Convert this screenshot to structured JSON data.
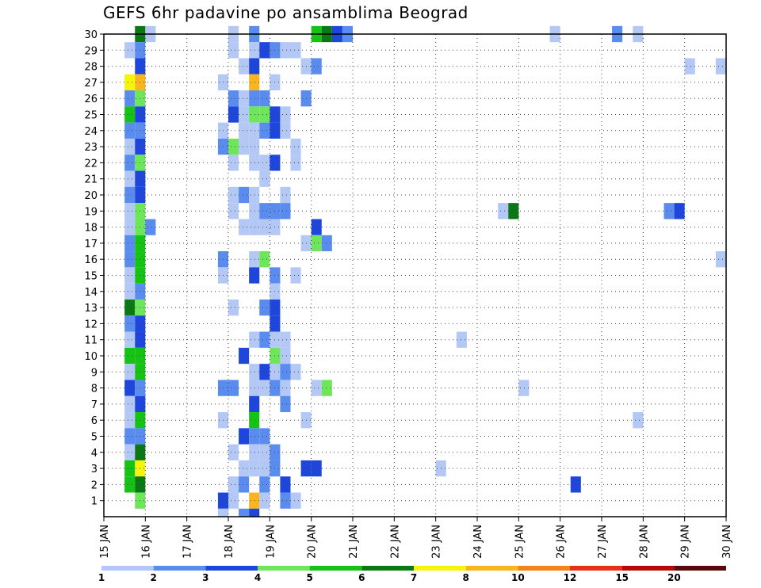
{
  "chart_data": {
    "type": "heatmap",
    "title": "GEFS 6hr padavine po ansamblima Beograd",
    "x_tick_labels": [
      "15 JAN",
      "16 JAN",
      "17 JAN",
      "18 JAN",
      "19 JAN",
      "20 JAN",
      "21 JAN",
      "22 JAN",
      "23 JAN",
      "24 JAN",
      "25 JAN",
      "26 JAN",
      "27 JAN",
      "28 JAN",
      "29 JAN",
      "30 JAN"
    ],
    "x_range_days": [
      15,
      30
    ],
    "y_tick_labels": [
      "1",
      "2",
      "3",
      "4",
      "5",
      "6",
      "7",
      "8",
      "9",
      "10",
      "11",
      "12",
      "13",
      "14",
      "15",
      "16",
      "17",
      "18",
      "19",
      "20",
      "21",
      "22",
      "23",
      "24",
      "25",
      "26",
      "27",
      "28",
      "29",
      "30"
    ],
    "y_range": [
      0,
      30
    ],
    "grid": "dotted",
    "colorbar": {
      "levels": [
        "1",
        "2",
        "3",
        "4",
        "5",
        "6",
        "7",
        "8",
        "10",
        "12",
        "15",
        "20"
      ],
      "colors": [
        "#b4c8f5",
        "#5a8cf0",
        "#1e46dc",
        "#6ee65a",
        "#14c314",
        "#0a7814",
        "#f5f50a",
        "#fab41e",
        "#f58214",
        "#e63214",
        "#b40a0a",
        "#5a0a0a"
      ]
    },
    "cells": [
      {
        "member": 30,
        "day": 15.75,
        "level": 6
      },
      {
        "member": 30,
        "day": 16.0,
        "level": 1
      },
      {
        "member": 30,
        "day": 18.0,
        "level": 1
      },
      {
        "member": 30,
        "day": 18.5,
        "level": 2
      },
      {
        "member": 30,
        "day": 20.0,
        "level": 5
      },
      {
        "member": 30,
        "day": 20.25,
        "level": 6
      },
      {
        "member": 30,
        "day": 20.5,
        "level": 3
      },
      {
        "member": 30,
        "day": 20.75,
        "level": 2
      },
      {
        "member": 30,
        "day": 25.75,
        "level": 1
      },
      {
        "member": 30,
        "day": 27.25,
        "level": 2
      },
      {
        "member": 30,
        "day": 27.75,
        "level": 1
      },
      {
        "member": 29,
        "day": 15.5,
        "level": 1
      },
      {
        "member": 29,
        "day": 15.75,
        "level": 2
      },
      {
        "member": 29,
        "day": 18.0,
        "level": 1
      },
      {
        "member": 29,
        "day": 18.5,
        "level": 1
      },
      {
        "member": 29,
        "day": 18.75,
        "level": 3
      },
      {
        "member": 29,
        "day": 19.0,
        "level": 2
      },
      {
        "member": 29,
        "day": 19.25,
        "level": 1
      },
      {
        "member": 29,
        "day": 19.5,
        "level": 1
      },
      {
        "member": 28,
        "day": 15.75,
        "level": 3
      },
      {
        "member": 28,
        "day": 18.25,
        "level": 1
      },
      {
        "member": 28,
        "day": 18.5,
        "level": 3
      },
      {
        "member": 28,
        "day": 19.75,
        "level": 1
      },
      {
        "member": 28,
        "day": 20.0,
        "level": 2
      },
      {
        "member": 28,
        "day": 29.0,
        "level": 1
      },
      {
        "member": 28,
        "day": 29.75,
        "level": 1
      },
      {
        "member": 27,
        "day": 15.5,
        "level": 7
      },
      {
        "member": 27,
        "day": 15.75,
        "level": 8
      },
      {
        "member": 27,
        "day": 17.75,
        "level": 1
      },
      {
        "member": 27,
        "day": 18.5,
        "level": 8
      },
      {
        "member": 27,
        "day": 19.0,
        "level": 1
      },
      {
        "member": 26,
        "day": 15.5,
        "level": 2
      },
      {
        "member": 26,
        "day": 15.75,
        "level": 4
      },
      {
        "member": 26,
        "day": 18.0,
        "level": 2
      },
      {
        "member": 26,
        "day": 18.25,
        "level": 1
      },
      {
        "member": 26,
        "day": 18.5,
        "level": 2
      },
      {
        "member": 26,
        "day": 18.75,
        "level": 2
      },
      {
        "member": 26,
        "day": 19.75,
        "level": 2
      },
      {
        "member": 25,
        "day": 15.5,
        "level": 5
      },
      {
        "member": 25,
        "day": 15.75,
        "level": 3
      },
      {
        "member": 25,
        "day": 18.0,
        "level": 3
      },
      {
        "member": 25,
        "day": 18.25,
        "level": 1
      },
      {
        "member": 25,
        "day": 18.5,
        "level": 4
      },
      {
        "member": 25,
        "day": 18.75,
        "level": 4
      },
      {
        "member": 25,
        "day": 19.0,
        "level": 3
      },
      {
        "member": 25,
        "day": 19.25,
        "level": 1
      },
      {
        "member": 24,
        "day": 15.5,
        "level": 2
      },
      {
        "member": 24,
        "day": 15.75,
        "level": 2
      },
      {
        "member": 24,
        "day": 17.75,
        "level": 1
      },
      {
        "member": 24,
        "day": 18.25,
        "level": 1
      },
      {
        "member": 24,
        "day": 18.5,
        "level": 1
      },
      {
        "member": 24,
        "day": 18.75,
        "level": 2
      },
      {
        "member": 24,
        "day": 19.0,
        "level": 3
      },
      {
        "member": 24,
        "day": 19.25,
        "level": 1
      },
      {
        "member": 23,
        "day": 15.5,
        "level": 1
      },
      {
        "member": 23,
        "day": 15.75,
        "level": 3
      },
      {
        "member": 23,
        "day": 17.75,
        "level": 2
      },
      {
        "member": 23,
        "day": 18.0,
        "level": 4
      },
      {
        "member": 23,
        "day": 18.25,
        "level": 1
      },
      {
        "member": 23,
        "day": 18.5,
        "level": 1
      },
      {
        "member": 23,
        "day": 19.5,
        "level": 1
      },
      {
        "member": 22,
        "day": 15.5,
        "level": 2
      },
      {
        "member": 22,
        "day": 15.75,
        "level": 4
      },
      {
        "member": 22,
        "day": 18.0,
        "level": 1
      },
      {
        "member": 22,
        "day": 18.5,
        "level": 1
      },
      {
        "member": 22,
        "day": 18.75,
        "level": 1
      },
      {
        "member": 22,
        "day": 19.0,
        "level": 3
      },
      {
        "member": 22,
        "day": 19.5,
        "level": 1
      },
      {
        "member": 21,
        "day": 15.5,
        "level": 1
      },
      {
        "member": 21,
        "day": 15.75,
        "level": 3
      },
      {
        "member": 21,
        "day": 18.75,
        "level": 1
      },
      {
        "member": 20,
        "day": 15.5,
        "level": 2
      },
      {
        "member": 20,
        "day": 15.75,
        "level": 3
      },
      {
        "member": 20,
        "day": 18.0,
        "level": 1
      },
      {
        "member": 20,
        "day": 18.25,
        "level": 2
      },
      {
        "member": 20,
        "day": 18.5,
        "level": 1
      },
      {
        "member": 20,
        "day": 19.25,
        "level": 1
      },
      {
        "member": 19,
        "day": 15.5,
        "level": 1
      },
      {
        "member": 19,
        "day": 15.75,
        "level": 4
      },
      {
        "member": 19,
        "day": 18.0,
        "level": 1
      },
      {
        "member": 19,
        "day": 18.5,
        "level": 1
      },
      {
        "member": 19,
        "day": 18.75,
        "level": 2
      },
      {
        "member": 19,
        "day": 19.0,
        "level": 2
      },
      {
        "member": 19,
        "day": 19.25,
        "level": 2
      },
      {
        "member": 19,
        "day": 24.5,
        "level": 1
      },
      {
        "member": 19,
        "day": 24.75,
        "level": 6
      },
      {
        "member": 19,
        "day": 28.5,
        "level": 2
      },
      {
        "member": 19,
        "day": 28.75,
        "level": 3
      },
      {
        "member": 18,
        "day": 15.5,
        "level": 1
      },
      {
        "member": 18,
        "day": 15.75,
        "level": 4
      },
      {
        "member": 18,
        "day": 16.0,
        "level": 2
      },
      {
        "member": 18,
        "day": 18.25,
        "level": 1
      },
      {
        "member": 18,
        "day": 18.5,
        "level": 1
      },
      {
        "member": 18,
        "day": 18.75,
        "level": 1
      },
      {
        "member": 18,
        "day": 19.0,
        "level": 1
      },
      {
        "member": 18,
        "day": 20.0,
        "level": 3
      },
      {
        "member": 17,
        "day": 15.5,
        "level": 2
      },
      {
        "member": 17,
        "day": 15.75,
        "level": 5
      },
      {
        "member": 17,
        "day": 19.75,
        "level": 1
      },
      {
        "member": 17,
        "day": 20.0,
        "level": 4
      },
      {
        "member": 17,
        "day": 20.25,
        "level": 2
      },
      {
        "member": 16,
        "day": 15.5,
        "level": 2
      },
      {
        "member": 16,
        "day": 15.75,
        "level": 5
      },
      {
        "member": 16,
        "day": 17.75,
        "level": 2
      },
      {
        "member": 16,
        "day": 18.5,
        "level": 1
      },
      {
        "member": 16,
        "day": 18.75,
        "level": 4
      },
      {
        "member": 16,
        "day": 29.75,
        "level": 1
      },
      {
        "member": 15,
        "day": 15.5,
        "level": 1
      },
      {
        "member": 15,
        "day": 15.75,
        "level": 5
      },
      {
        "member": 15,
        "day": 17.75,
        "level": 1
      },
      {
        "member": 15,
        "day": 18.5,
        "level": 3
      },
      {
        "member": 15,
        "day": 19.0,
        "level": 2
      },
      {
        "member": 15,
        "day": 19.5,
        "level": 1
      },
      {
        "member": 14,
        "day": 15.5,
        "level": 1
      },
      {
        "member": 14,
        "day": 15.75,
        "level": 2
      },
      {
        "member": 14,
        "day": 19.0,
        "level": 1
      },
      {
        "member": 13,
        "day": 15.5,
        "level": 6
      },
      {
        "member": 13,
        "day": 15.75,
        "level": 4
      },
      {
        "member": 13,
        "day": 18.0,
        "level": 1
      },
      {
        "member": 13,
        "day": 18.75,
        "level": 2
      },
      {
        "member": 13,
        "day": 19.0,
        "level": 3
      },
      {
        "member": 12,
        "day": 15.5,
        "level": 2
      },
      {
        "member": 12,
        "day": 15.75,
        "level": 3
      },
      {
        "member": 12,
        "day": 19.0,
        "level": 3
      },
      {
        "member": 11,
        "day": 15.5,
        "level": 1
      },
      {
        "member": 11,
        "day": 15.75,
        "level": 3
      },
      {
        "member": 11,
        "day": 18.5,
        "level": 1
      },
      {
        "member": 11,
        "day": 18.75,
        "level": 2
      },
      {
        "member": 11,
        "day": 19.0,
        "level": 1
      },
      {
        "member": 11,
        "day": 19.25,
        "level": 1
      },
      {
        "member": 11,
        "day": 23.5,
        "level": 1
      },
      {
        "member": 10,
        "day": 15.5,
        "level": 5
      },
      {
        "member": 10,
        "day": 15.75,
        "level": 5
      },
      {
        "member": 10,
        "day": 18.25,
        "level": 3
      },
      {
        "member": 10,
        "day": 19.0,
        "level": 4
      },
      {
        "member": 10,
        "day": 19.25,
        "level": 1
      },
      {
        "member": 9,
        "day": 15.5,
        "level": 1
      },
      {
        "member": 9,
        "day": 15.75,
        "level": 5
      },
      {
        "member": 9,
        "day": 18.5,
        "level": 1
      },
      {
        "member": 9,
        "day": 18.75,
        "level": 3
      },
      {
        "member": 9,
        "day": 19.0,
        "level": 1
      },
      {
        "member": 9,
        "day": 19.25,
        "level": 2
      },
      {
        "member": 9,
        "day": 19.5,
        "level": 1
      },
      {
        "member": 8,
        "day": 15.5,
        "level": 3
      },
      {
        "member": 8,
        "day": 15.75,
        "level": 2
      },
      {
        "member": 8,
        "day": 17.75,
        "level": 2
      },
      {
        "member": 8,
        "day": 18.0,
        "level": 2
      },
      {
        "member": 8,
        "day": 18.5,
        "level": 1
      },
      {
        "member": 8,
        "day": 18.75,
        "level": 1
      },
      {
        "member": 8,
        "day": 19.0,
        "level": 2
      },
      {
        "member": 8,
        "day": 19.25,
        "level": 1
      },
      {
        "member": 8,
        "day": 20.0,
        "level": 1
      },
      {
        "member": 8,
        "day": 20.25,
        "level": 4
      },
      {
        "member": 8,
        "day": 25.0,
        "level": 1
      },
      {
        "member": 7,
        "day": 15.5,
        "level": 1
      },
      {
        "member": 7,
        "day": 15.75,
        "level": 3
      },
      {
        "member": 7,
        "day": 18.5,
        "level": 3
      },
      {
        "member": 7,
        "day": 19.25,
        "level": 2
      },
      {
        "member": 6,
        "day": 15.5,
        "level": 1
      },
      {
        "member": 6,
        "day": 15.75,
        "level": 5
      },
      {
        "member": 6,
        "day": 17.75,
        "level": 1
      },
      {
        "member": 6,
        "day": 18.5,
        "level": 5
      },
      {
        "member": 6,
        "day": 19.75,
        "level": 1
      },
      {
        "member": 6,
        "day": 27.75,
        "level": 1
      },
      {
        "member": 5,
        "day": 15.5,
        "level": 2
      },
      {
        "member": 5,
        "day": 15.75,
        "level": 2
      },
      {
        "member": 5,
        "day": 18.25,
        "level": 3
      },
      {
        "member": 5,
        "day": 18.5,
        "level": 2
      },
      {
        "member": 5,
        "day": 18.75,
        "level": 2
      },
      {
        "member": 4,
        "day": 15.5,
        "level": 1
      },
      {
        "member": 4,
        "day": 15.75,
        "level": 6
      },
      {
        "member": 4,
        "day": 18.0,
        "level": 1
      },
      {
        "member": 4,
        "day": 18.5,
        "level": 1
      },
      {
        "member": 4,
        "day": 18.75,
        "level": 1
      },
      {
        "member": 4,
        "day": 19.0,
        "level": 2
      },
      {
        "member": 3,
        "day": 15.5,
        "level": 5
      },
      {
        "member": 3,
        "day": 15.75,
        "level": 7
      },
      {
        "member": 3,
        "day": 18.25,
        "level": 1
      },
      {
        "member": 3,
        "day": 18.5,
        "level": 1
      },
      {
        "member": 3,
        "day": 18.75,
        "level": 1
      },
      {
        "member": 3,
        "day": 19.0,
        "level": 2
      },
      {
        "member": 3,
        "day": 19.75,
        "level": 3
      },
      {
        "member": 3,
        "day": 20.0,
        "level": 3
      },
      {
        "member": 3,
        "day": 23.0,
        "level": 1
      },
      {
        "member": 2,
        "day": 15.5,
        "level": 5
      },
      {
        "member": 2,
        "day": 15.75,
        "level": 6
      },
      {
        "member": 2,
        "day": 18.0,
        "level": 1
      },
      {
        "member": 2,
        "day": 18.25,
        "level": 2
      },
      {
        "member": 2,
        "day": 18.75,
        "level": 2
      },
      {
        "member": 2,
        "day": 19.25,
        "level": 3
      },
      {
        "member": 2,
        "day": 26.25,
        "level": 3
      },
      {
        "member": 1,
        "day": 15.75,
        "level": 4
      },
      {
        "member": 1,
        "day": 17.75,
        "level": 3
      },
      {
        "member": 1,
        "day": 18.0,
        "level": 1
      },
      {
        "member": 1,
        "day": 18.5,
        "level": 8
      },
      {
        "member": 1,
        "day": 18.75,
        "level": 1
      },
      {
        "member": 1,
        "day": 19.25,
        "level": 2
      },
      {
        "member": 1,
        "day": 19.5,
        "level": 1
      },
      {
        "member": 0,
        "day": 17.75,
        "level": 1
      },
      {
        "member": 0,
        "day": 18.25,
        "level": 2
      },
      {
        "member": 0,
        "day": 18.5,
        "level": 3
      }
    ]
  }
}
